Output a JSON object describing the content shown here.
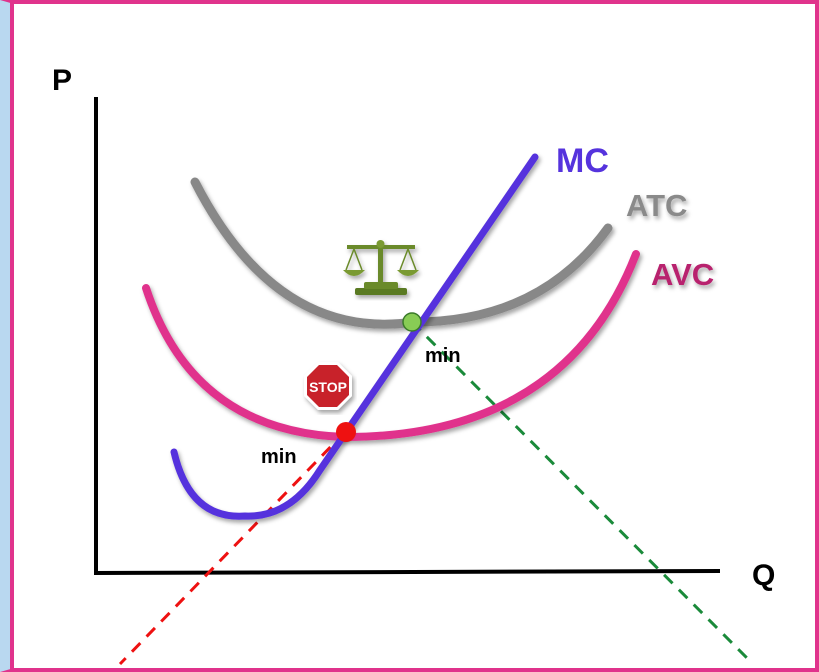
{
  "axes": {
    "y_label": "P",
    "x_label": "Q"
  },
  "curves": {
    "mc": {
      "label": "MC",
      "color": "#5533dd"
    },
    "atc": {
      "label": "ATC",
      "color": "#888888"
    },
    "avc": {
      "label": "AVC",
      "color": "#e0338c"
    }
  },
  "points": {
    "atc_min": {
      "label": "min",
      "color": "#88cc55"
    },
    "avc_min": {
      "label": "min",
      "color": "#ee1111"
    }
  },
  "icons": {
    "stop_sign": {
      "text": "STOP",
      "icon": "stop-sign-icon"
    },
    "scale": {
      "icon": "balance-scale-icon"
    }
  },
  "guides": {
    "green_color": "#1a8a3a",
    "red_color": "#ee1111"
  }
}
